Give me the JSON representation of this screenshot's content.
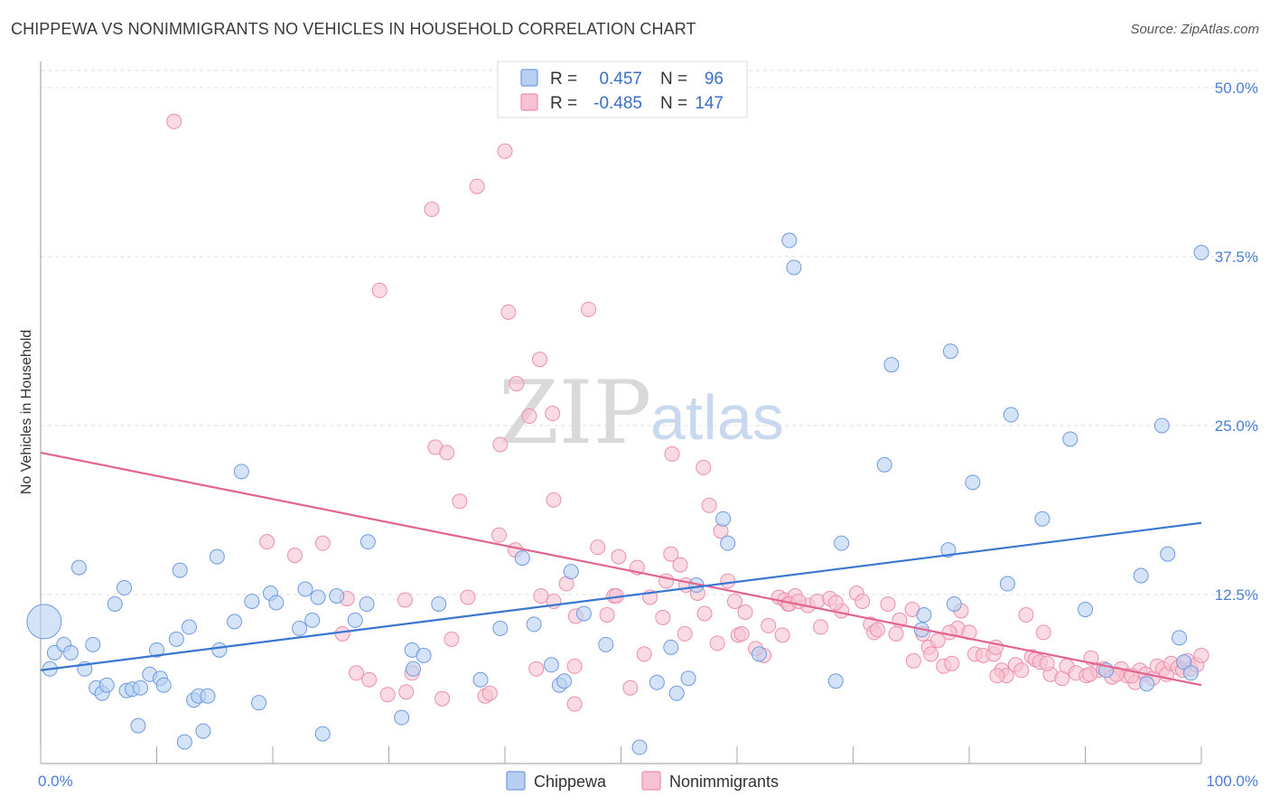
{
  "header": {
    "title": "CHIPPEWA VS NONIMMIGRANTS NO VEHICLES IN HOUSEHOLD CORRELATION CHART",
    "source": "Source: ZipAtlas.com"
  },
  "watermark": {
    "part1": "ZIP",
    "part2": "atlas"
  },
  "legend": {
    "rows": [
      {
        "r_label": "R =",
        "r_value": "0.457",
        "n_label": "N =",
        "n_value": "96",
        "color": "#6f9be0"
      },
      {
        "r_label": "R =",
        "r_value": "-0.485",
        "n_label": "N =",
        "n_value": "147",
        "color": "#ef8fae"
      }
    ]
  },
  "bottom_legend": [
    "Chippewa",
    "Nonimmigrants"
  ],
  "colors": {
    "chippewa_fill": "#b7d0f2",
    "chippewa_stroke": "#6f9be0",
    "chippewa_line": "#3a75d0",
    "nonimm_fill": "#f7c3d2",
    "nonimm_stroke": "#ec8fac",
    "nonimm_line": "#e2658f",
    "grid": "#dcdcdc",
    "tick_text": "#4a7fd4"
  },
  "chart_data": {
    "type": "scatter",
    "title": "CHIPPEWA VS NONIMMIGRANTS NO VEHICLES IN HOUSEHOLD CORRELATION CHART",
    "xlabel": "",
    "ylabel": "No Vehicles in Household",
    "xlim": [
      0,
      100
    ],
    "ylim": [
      0,
      52
    ],
    "x_tick_labels": [
      "0.0%",
      "100.0%"
    ],
    "y_ticks": [
      12.5,
      25.0,
      37.5,
      50.0
    ],
    "y_tick_labels": [
      "12.5%",
      "25.0%",
      "37.5%",
      "50.0%"
    ],
    "grid": true,
    "legend_position": "top-center",
    "series": [
      {
        "name": "Chippewa",
        "trend": {
          "x": [
            0,
            100
          ],
          "y": [
            6.9,
            17.8
          ]
        },
        "points": [
          [
            0.3,
            10.5
          ],
          [
            0.8,
            7.0
          ],
          [
            1.2,
            8.2
          ],
          [
            2.0,
            8.8
          ],
          [
            2.6,
            8.2
          ],
          [
            3.3,
            14.5
          ],
          [
            3.8,
            7.0
          ],
          [
            4.5,
            8.8
          ],
          [
            4.8,
            5.6
          ],
          [
            5.3,
            5.2
          ],
          [
            5.7,
            5.8
          ],
          [
            6.4,
            11.8
          ],
          [
            7.2,
            13.0
          ],
          [
            7.4,
            5.4
          ],
          [
            7.9,
            5.5
          ],
          [
            8.4,
            2.8
          ],
          [
            8.6,
            5.6
          ],
          [
            9.4,
            6.6
          ],
          [
            10.0,
            8.4
          ],
          [
            10.3,
            6.3
          ],
          [
            10.6,
            5.8
          ],
          [
            11.7,
            9.2
          ],
          [
            12.0,
            14.3
          ],
          [
            12.4,
            1.6
          ],
          [
            12.8,
            10.1
          ],
          [
            13.2,
            4.7
          ],
          [
            13.6,
            5.0
          ],
          [
            14.0,
            2.4
          ],
          [
            14.4,
            5.0
          ],
          [
            15.4,
            8.4
          ],
          [
            15.2,
            15.3
          ],
          [
            16.7,
            10.5
          ],
          [
            17.3,
            21.6
          ],
          [
            18.2,
            12.0
          ],
          [
            18.8,
            4.5
          ],
          [
            19.8,
            12.6
          ],
          [
            20.3,
            11.9
          ],
          [
            22.3,
            10.0
          ],
          [
            22.8,
            12.9
          ],
          [
            23.4,
            10.6
          ],
          [
            23.9,
            12.3
          ],
          [
            24.3,
            2.2
          ],
          [
            25.5,
            12.4
          ],
          [
            27.1,
            10.6
          ],
          [
            28.1,
            11.8
          ],
          [
            28.2,
            16.4
          ],
          [
            31.1,
            3.4
          ],
          [
            32.1,
            7.0
          ],
          [
            32.0,
            8.4
          ],
          [
            33.0,
            8.0
          ],
          [
            34.3,
            11.8
          ],
          [
            37.9,
            6.2
          ],
          [
            39.6,
            10.0
          ],
          [
            41.5,
            15.2
          ],
          [
            42.5,
            10.3
          ],
          [
            44.0,
            7.3
          ],
          [
            44.7,
            5.8
          ],
          [
            45.1,
            6.1
          ],
          [
            45.7,
            14.2
          ],
          [
            46.8,
            11.1
          ],
          [
            48.7,
            8.8
          ],
          [
            51.6,
            1.2
          ],
          [
            53.1,
            6.0
          ],
          [
            54.3,
            8.6
          ],
          [
            54.8,
            5.2
          ],
          [
            55.8,
            6.3
          ],
          [
            56.5,
            13.2
          ],
          [
            58.8,
            18.1
          ],
          [
            59.2,
            16.3
          ],
          [
            61.9,
            8.1
          ],
          [
            64.5,
            38.7
          ],
          [
            64.9,
            36.7
          ],
          [
            68.5,
            6.1
          ],
          [
            69.0,
            16.3
          ],
          [
            72.7,
            22.1
          ],
          [
            73.3,
            29.5
          ],
          [
            75.9,
            9.9
          ],
          [
            76.1,
            11.0
          ],
          [
            78.2,
            15.8
          ],
          [
            78.4,
            30.5
          ],
          [
            78.7,
            11.8
          ],
          [
            80.3,
            20.8
          ],
          [
            83.3,
            13.3
          ],
          [
            83.6,
            25.8
          ],
          [
            86.3,
            18.1
          ],
          [
            88.7,
            24.0
          ],
          [
            90.0,
            11.4
          ],
          [
            91.8,
            6.9
          ],
          [
            94.8,
            13.9
          ],
          [
            95.3,
            5.9
          ],
          [
            96.6,
            25.0
          ],
          [
            97.1,
            15.5
          ],
          [
            98.1,
            9.3
          ],
          [
            98.5,
            7.5
          ],
          [
            99.1,
            6.7
          ],
          [
            100.0,
            37.8
          ]
        ]
      },
      {
        "name": "Nonimmigrants",
        "trend": {
          "x": [
            0,
            100
          ],
          "y": [
            23.0,
            5.8
          ]
        },
        "points": [
          [
            11.5,
            47.5
          ],
          [
            29.2,
            35.0
          ],
          [
            33.7,
            41.0
          ],
          [
            37.6,
            42.7
          ],
          [
            40.0,
            45.3
          ],
          [
            40.3,
            33.4
          ],
          [
            41.0,
            28.1
          ],
          [
            42.1,
            25.7
          ],
          [
            43.0,
            29.9
          ],
          [
            44.1,
            25.9
          ],
          [
            34.0,
            23.4
          ],
          [
            35.0,
            23.0
          ],
          [
            36.1,
            19.4
          ],
          [
            39.6,
            23.6
          ],
          [
            44.2,
            19.5
          ],
          [
            47.2,
            33.6
          ],
          [
            54.4,
            22.9
          ],
          [
            57.1,
            21.9
          ],
          [
            57.6,
            19.1
          ],
          [
            58.6,
            17.2
          ],
          [
            19.5,
            16.4
          ],
          [
            21.9,
            15.4
          ],
          [
            24.3,
            16.3
          ],
          [
            26.4,
            12.2
          ],
          [
            31.4,
            12.1
          ],
          [
            36.8,
            12.3
          ],
          [
            39.5,
            16.9
          ],
          [
            40.9,
            15.8
          ],
          [
            42.7,
            7.0
          ],
          [
            43.1,
            12.4
          ],
          [
            45.3,
            13.3
          ],
          [
            46.0,
            4.4
          ],
          [
            48.0,
            16.0
          ],
          [
            48.8,
            11.0
          ],
          [
            49.4,
            12.4
          ],
          [
            49.8,
            15.3
          ],
          [
            51.4,
            14.5
          ],
          [
            52.5,
            12.3
          ],
          [
            53.9,
            13.5
          ],
          [
            54.3,
            15.5
          ],
          [
            55.1,
            14.7
          ],
          [
            55.6,
            13.2
          ],
          [
            56.6,
            12.6
          ],
          [
            57.2,
            11.1
          ],
          [
            59.2,
            13.5
          ],
          [
            59.8,
            12.0
          ],
          [
            60.1,
            9.5
          ],
          [
            60.7,
            11.2
          ],
          [
            62.3,
            8.0
          ],
          [
            62.7,
            10.2
          ],
          [
            63.6,
            12.3
          ],
          [
            64.1,
            12.1
          ],
          [
            64.4,
            11.8
          ],
          [
            65.0,
            12.4
          ],
          [
            66.1,
            11.7
          ],
          [
            66.9,
            12.0
          ],
          [
            67.2,
            10.1
          ],
          [
            68.0,
            12.2
          ],
          [
            69.0,
            11.3
          ],
          [
            70.3,
            12.6
          ],
          [
            71.5,
            10.3
          ],
          [
            71.8,
            9.7
          ],
          [
            72.1,
            9.9
          ],
          [
            73.0,
            11.8
          ],
          [
            74.0,
            10.6
          ],
          [
            75.1,
            11.4
          ],
          [
            76.0,
            9.6
          ],
          [
            76.5,
            8.6
          ],
          [
            76.7,
            8.1
          ],
          [
            77.3,
            9.1
          ],
          [
            77.8,
            7.2
          ],
          [
            78.5,
            7.4
          ],
          [
            79.0,
            10.0
          ],
          [
            79.3,
            11.3
          ],
          [
            80.5,
            8.1
          ],
          [
            81.2,
            8.0
          ],
          [
            82.1,
            8.1
          ],
          [
            82.3,
            8.6
          ],
          [
            82.8,
            6.9
          ],
          [
            83.2,
            6.5
          ],
          [
            84.0,
            7.3
          ],
          [
            84.5,
            6.9
          ],
          [
            85.4,
            7.9
          ],
          [
            85.7,
            7.7
          ],
          [
            86.1,
            7.5
          ],
          [
            86.4,
            9.7
          ],
          [
            87.0,
            6.6
          ],
          [
            88.0,
            6.3
          ],
          [
            88.4,
            7.2
          ],
          [
            89.2,
            6.7
          ],
          [
            90.1,
            6.5
          ],
          [
            90.5,
            7.8
          ],
          [
            91.1,
            6.9
          ],
          [
            91.6,
            7.0
          ],
          [
            92.3,
            6.4
          ],
          [
            93.1,
            7.0
          ],
          [
            93.6,
            6.5
          ],
          [
            94.3,
            6.0
          ],
          [
            94.7,
            6.9
          ],
          [
            95.2,
            6.6
          ],
          [
            95.8,
            6.3
          ],
          [
            96.2,
            7.2
          ],
          [
            96.7,
            7.0
          ],
          [
            97.0,
            6.6
          ],
          [
            97.4,
            7.4
          ],
          [
            98.0,
            7.1
          ],
          [
            98.4,
            6.9
          ],
          [
            98.8,
            7.6
          ],
          [
            99.1,
            7.0
          ],
          [
            99.6,
            7.3
          ],
          [
            100.0,
            8.0
          ],
          [
            26.0,
            9.6
          ],
          [
            27.2,
            6.7
          ],
          [
            28.3,
            6.2
          ],
          [
            29.9,
            5.1
          ],
          [
            31.5,
            5.3
          ],
          [
            32.0,
            6.7
          ],
          [
            34.6,
            4.8
          ],
          [
            35.4,
            9.2
          ],
          [
            38.3,
            5.0
          ],
          [
            38.7,
            5.2
          ],
          [
            44.2,
            12.0
          ],
          [
            46.0,
            7.2
          ],
          [
            46.1,
            10.9
          ],
          [
            49.6,
            12.4
          ],
          [
            50.8,
            5.6
          ],
          [
            52.0,
            8.1
          ],
          [
            53.6,
            10.8
          ],
          [
            55.5,
            9.6
          ],
          [
            58.3,
            8.9
          ],
          [
            60.4,
            9.6
          ],
          [
            61.6,
            8.5
          ],
          [
            63.9,
            9.5
          ],
          [
            64.5,
            11.8
          ],
          [
            65.3,
            12.0
          ],
          [
            68.5,
            11.9
          ],
          [
            70.8,
            12.0
          ],
          [
            73.7,
            9.6
          ],
          [
            75.2,
            7.6
          ],
          [
            78.3,
            9.7
          ],
          [
            80.0,
            9.7
          ],
          [
            82.4,
            6.5
          ],
          [
            84.9,
            11.0
          ],
          [
            86.7,
            7.4
          ],
          [
            90.4,
            6.6
          ],
          [
            92.7,
            6.6
          ],
          [
            94.0,
            6.5
          ]
        ]
      }
    ]
  }
}
